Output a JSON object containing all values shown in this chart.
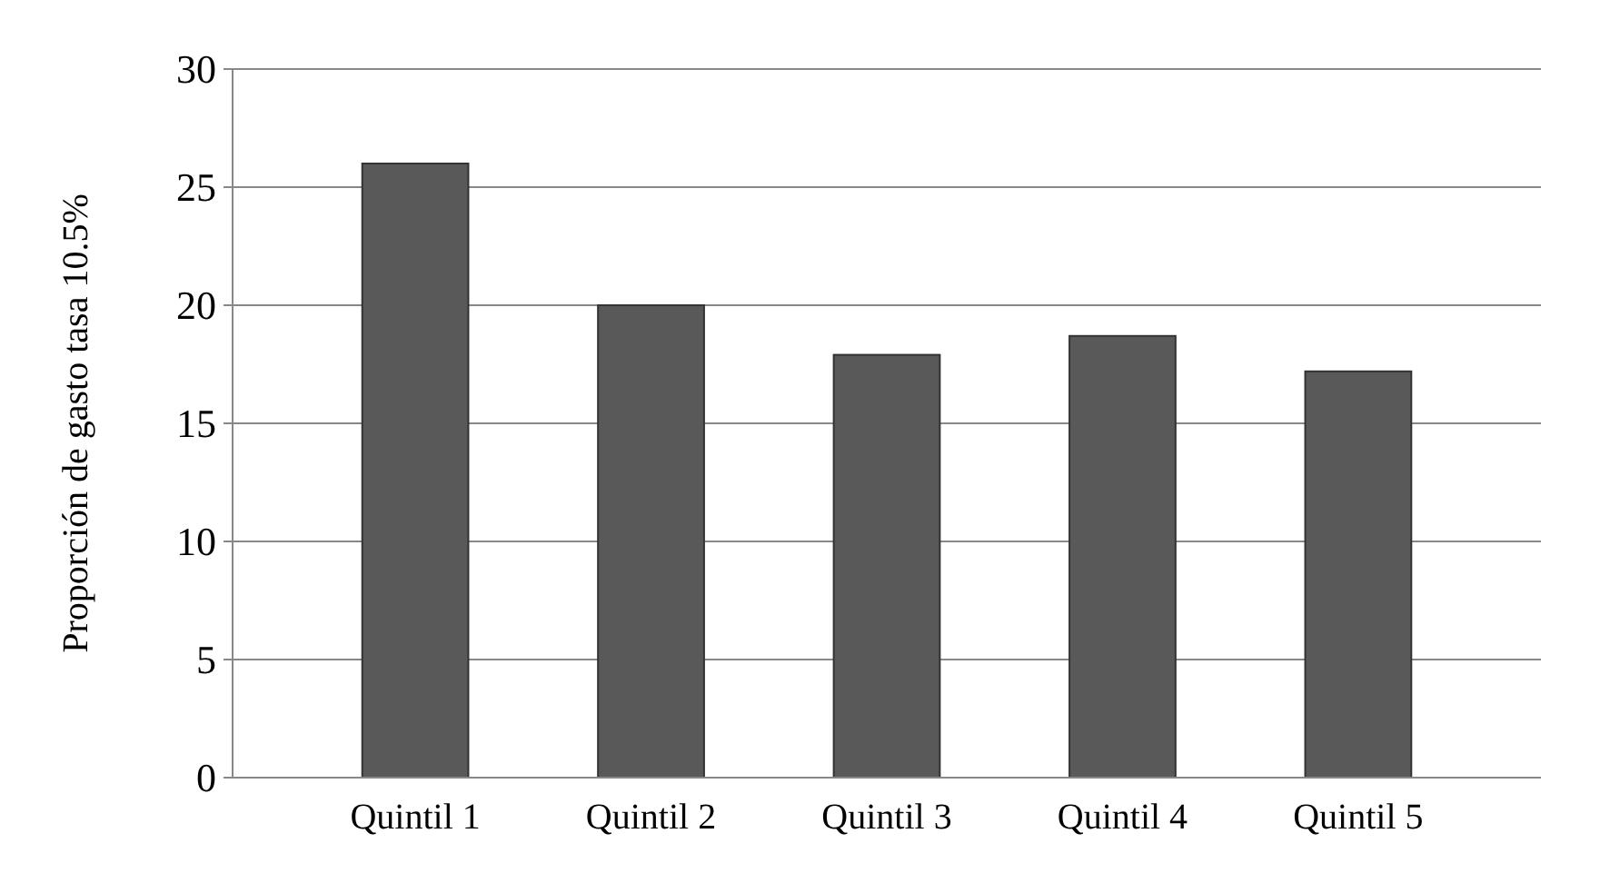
{
  "chart_data": {
    "type": "bar",
    "ylabel": "Proporción de gasto tasa 10.5%",
    "categories": [
      "Quintil 1",
      "Quintil 2",
      "Quintil 3",
      "Quintil 4",
      "Quintil 5"
    ],
    "values": [
      26,
      20,
      17.9,
      18.7,
      17.2
    ],
    "color": "#595959",
    "ylim": [
      0,
      30
    ],
    "yticks": [
      0,
      5,
      10,
      15,
      20,
      25,
      30
    ],
    "grid": "y"
  }
}
